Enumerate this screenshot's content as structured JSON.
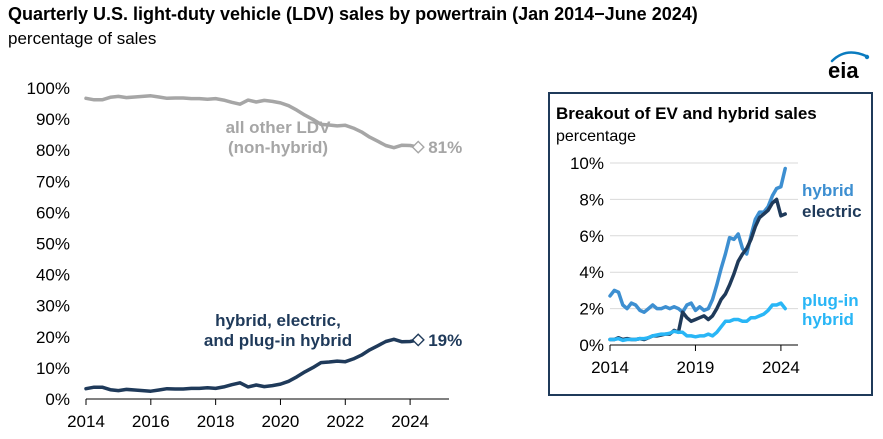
{
  "header": {
    "title": "Quarterly U.S. light-duty vehicle (LDV) sales by powertrain (Jan 2014−June 2024)",
    "subtitle": "percentage of sales",
    "logo_text": "eia",
    "logo_color": "#0a7bbf"
  },
  "chart_data": [
    {
      "type": "line",
      "title": "Quarterly U.S. light-duty vehicle (LDV) sales by powertrain (Jan 2014−June 2024)",
      "ylabel": "percentage of sales",
      "xlim": [
        2014,
        2025.2
      ],
      "ylim": [
        0,
        100
      ],
      "x_ticks": [
        "2014",
        "2016",
        "2018",
        "2020",
        "2022",
        "2024"
      ],
      "y_ticks": [
        "0%",
        "10%",
        "20%",
        "30%",
        "40%",
        "50%",
        "60%",
        "70%",
        "80%",
        "90%",
        "100%"
      ],
      "grid": false,
      "series": [
        {
          "name": "all other LDV (non-hybrid)",
          "label_lines": [
            "all other LDV",
            "(non-hybrid)"
          ],
          "end_label": "81%",
          "color": "#a6a6a6",
          "x": [
            2014.0,
            2014.25,
            2014.5,
            2014.75,
            2015.0,
            2015.25,
            2015.5,
            2015.75,
            2016.0,
            2016.25,
            2016.5,
            2016.75,
            2017.0,
            2017.25,
            2017.5,
            2017.75,
            2018.0,
            2018.25,
            2018.5,
            2018.75,
            2019.0,
            2019.25,
            2019.5,
            2019.75,
            2020.0,
            2020.25,
            2020.5,
            2020.75,
            2021.0,
            2021.25,
            2021.5,
            2021.75,
            2022.0,
            2022.25,
            2022.5,
            2022.75,
            2023.0,
            2023.25,
            2023.5,
            2023.75,
            2024.0,
            2024.25
          ],
          "values": [
            96.7,
            96.2,
            96.2,
            97.0,
            97.3,
            96.9,
            97.1,
            97.3,
            97.5,
            97.1,
            96.7,
            96.8,
            96.8,
            96.6,
            96.6,
            96.4,
            96.6,
            96.1,
            95.4,
            94.8,
            96.1,
            95.5,
            96.0,
            95.7,
            95.2,
            94.3,
            92.9,
            91.3,
            89.9,
            88.3,
            88.1,
            87.8,
            88.0,
            87.1,
            85.9,
            84.2,
            82.9,
            81.5,
            80.8,
            81.6,
            81.5,
            81.0
          ]
        },
        {
          "name": "hybrid, electric, and plug-in hybrid",
          "label_lines": [
            "hybrid, electric,",
            "and plug-in hybrid"
          ],
          "end_label": "19%",
          "color": "#1f3a5a",
          "x": [
            2014.0,
            2014.25,
            2014.5,
            2014.75,
            2015.0,
            2015.25,
            2015.5,
            2015.75,
            2016.0,
            2016.25,
            2016.5,
            2016.75,
            2017.0,
            2017.25,
            2017.5,
            2017.75,
            2018.0,
            2018.25,
            2018.5,
            2018.75,
            2019.0,
            2019.25,
            2019.5,
            2019.75,
            2020.0,
            2020.25,
            2020.5,
            2020.75,
            2021.0,
            2021.25,
            2021.5,
            2021.75,
            2022.0,
            2022.25,
            2022.5,
            2022.75,
            2023.0,
            2023.25,
            2023.5,
            2023.75,
            2024.0,
            2024.25
          ],
          "values": [
            3.3,
            3.8,
            3.8,
            3.0,
            2.7,
            3.1,
            2.9,
            2.7,
            2.5,
            2.9,
            3.3,
            3.2,
            3.2,
            3.4,
            3.4,
            3.6,
            3.4,
            3.9,
            4.6,
            5.2,
            3.9,
            4.5,
            4.0,
            4.3,
            4.8,
            5.7,
            7.1,
            8.7,
            10.1,
            11.7,
            11.9,
            12.2,
            12.0,
            12.9,
            14.1,
            15.8,
            17.1,
            18.5,
            19.2,
            18.4,
            18.5,
            19.0
          ]
        }
      ]
    },
    {
      "type": "line",
      "title": "Breakout of EV and hybrid sales",
      "ylabel": "percentage",
      "xlim": [
        2014,
        2025
      ],
      "ylim": [
        0,
        10
      ],
      "x_ticks": [
        "2014",
        "2019",
        "2024"
      ],
      "y_ticks": [
        "0%",
        "2%",
        "4%",
        "6%",
        "8%",
        "10%"
      ],
      "grid": true,
      "series": [
        {
          "name": "hybrid",
          "color": "#3d8fd1",
          "x": [
            2014.0,
            2014.25,
            2014.5,
            2014.75,
            2015.0,
            2015.25,
            2015.5,
            2015.75,
            2016.0,
            2016.25,
            2016.5,
            2016.75,
            2017.0,
            2017.25,
            2017.5,
            2017.75,
            2018.0,
            2018.25,
            2018.5,
            2018.75,
            2019.0,
            2019.25,
            2019.5,
            2019.75,
            2020.0,
            2020.25,
            2020.5,
            2020.75,
            2021.0,
            2021.25,
            2021.5,
            2021.75,
            2022.0,
            2022.25,
            2022.5,
            2022.75,
            2023.0,
            2023.25,
            2023.5,
            2023.75,
            2024.0,
            2024.25
          ],
          "values": [
            2.7,
            3.0,
            2.9,
            2.2,
            2.0,
            2.3,
            2.2,
            1.9,
            1.8,
            2.0,
            2.2,
            2.0,
            2.0,
            2.1,
            2.0,
            2.1,
            2.0,
            1.8,
            2.2,
            2.3,
            1.9,
            2.1,
            1.9,
            2.0,
            2.5,
            3.3,
            4.2,
            5.0,
            5.9,
            5.8,
            6.1,
            5.3,
            5.0,
            6.0,
            6.9,
            7.3,
            7.3,
            7.6,
            8.2,
            8.6,
            8.7,
            9.7
          ]
        },
        {
          "name": "electric",
          "color": "#1f3a5a",
          "x": [
            2014.0,
            2014.25,
            2014.5,
            2014.75,
            2015.0,
            2015.25,
            2015.5,
            2015.75,
            2016.0,
            2016.25,
            2016.5,
            2016.75,
            2017.0,
            2017.25,
            2017.5,
            2017.75,
            2018.0,
            2018.25,
            2018.5,
            2018.75,
            2019.0,
            2019.25,
            2019.5,
            2019.75,
            2020.0,
            2020.25,
            2020.5,
            2020.75,
            2021.0,
            2021.25,
            2021.5,
            2021.75,
            2022.0,
            2022.25,
            2022.5,
            2022.75,
            2023.0,
            2023.25,
            2023.5,
            2023.75,
            2024.0,
            2024.25
          ],
          "values": [
            0.3,
            0.3,
            0.4,
            0.3,
            0.35,
            0.3,
            0.3,
            0.35,
            0.3,
            0.4,
            0.5,
            0.5,
            0.55,
            0.6,
            0.6,
            0.8,
            0.7,
            1.8,
            1.5,
            1.3,
            1.4,
            1.5,
            1.6,
            1.4,
            1.6,
            2.0,
            2.5,
            2.8,
            3.3,
            3.9,
            4.6,
            5.0,
            5.3,
            5.8,
            6.5,
            7.0,
            7.2,
            7.4,
            7.8,
            8.0,
            7.1,
            7.2
          ]
        },
        {
          "name": "plug-in hybrid",
          "label_lines": [
            "plug-in",
            "hybrid"
          ],
          "color": "#29b6f6",
          "x": [
            2014.0,
            2014.25,
            2014.5,
            2014.75,
            2015.0,
            2015.25,
            2015.5,
            2015.75,
            2016.0,
            2016.25,
            2016.5,
            2016.75,
            2017.0,
            2017.25,
            2017.5,
            2017.75,
            2018.0,
            2018.25,
            2018.5,
            2018.75,
            2019.0,
            2019.25,
            2019.5,
            2019.75,
            2020.0,
            2020.25,
            2020.5,
            2020.75,
            2021.0,
            2021.25,
            2021.5,
            2021.75,
            2022.0,
            2022.25,
            2022.5,
            2022.75,
            2023.0,
            2023.25,
            2023.5,
            2023.75,
            2024.0,
            2024.25
          ],
          "values": [
            0.3,
            0.3,
            0.35,
            0.25,
            0.3,
            0.3,
            0.3,
            0.35,
            0.35,
            0.4,
            0.5,
            0.55,
            0.6,
            0.6,
            0.65,
            0.75,
            0.7,
            0.7,
            0.5,
            0.5,
            0.45,
            0.5,
            0.5,
            0.6,
            0.5,
            0.7,
            1.0,
            1.3,
            1.3,
            1.4,
            1.4,
            1.3,
            1.3,
            1.5,
            1.5,
            1.6,
            1.7,
            1.9,
            2.2,
            2.2,
            2.3,
            2.0
          ]
        }
      ]
    }
  ]
}
